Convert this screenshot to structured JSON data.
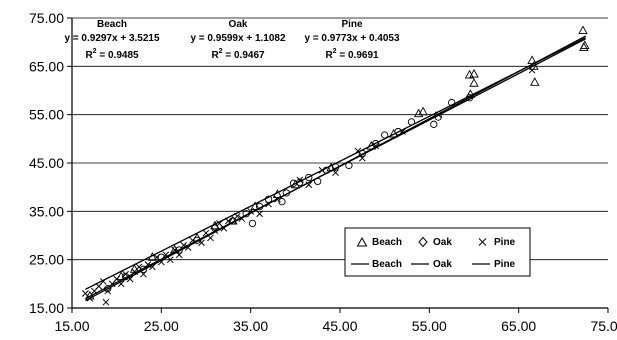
{
  "chart_data": {
    "type": "scatter",
    "title": "",
    "xlabel": "",
    "ylabel": "",
    "xlim": [
      15,
      75
    ],
    "ylim": [
      15,
      75
    ],
    "x_ticks": [
      "15.00",
      "25.00",
      "35.00",
      "45.00",
      "55.00",
      "65.00",
      "75.00"
    ],
    "y_ticks": [
      "15.00",
      "25.00",
      "35.00",
      "45.00",
      "55.00",
      "65.00",
      "75.00"
    ],
    "grid": "horizontal",
    "legend_position": "bottom-right",
    "series": [
      {
        "name": "Beach",
        "marker": "triangle",
        "equation": "y = 0.9297x + 3.5215",
        "r2": "R",
        "r2_sup": "2",
        "r2_value": " = 0.9485",
        "slope": 0.9297,
        "intercept": 3.5215,
        "points": [
          [
            17.0,
            17.5
          ],
          [
            20.5,
            21.5
          ],
          [
            22.0,
            23.0
          ],
          [
            24.0,
            25.5
          ],
          [
            26.5,
            27.0
          ],
          [
            29.0,
            29.5
          ],
          [
            31.0,
            32.0
          ],
          [
            33.0,
            33.0
          ],
          [
            35.5,
            36.0
          ],
          [
            38.0,
            38.5
          ],
          [
            40.0,
            40.5
          ],
          [
            44.0,
            44.0
          ],
          [
            48.5,
            48.5
          ],
          [
            51.0,
            51.0
          ],
          [
            53.8,
            55.2
          ],
          [
            54.3,
            55.6
          ],
          [
            59.5,
            63.2
          ],
          [
            60.0,
            63.4
          ],
          [
            60.0,
            61.5
          ],
          [
            59.6,
            59.2
          ],
          [
            66.5,
            66.2
          ],
          [
            66.7,
            65.0
          ],
          [
            66.8,
            61.7
          ],
          [
            72.2,
            72.4
          ],
          [
            72.4,
            69.3
          ],
          [
            72.3,
            68.9
          ]
        ]
      },
      {
        "name": "Oak",
        "marker": "circle",
        "equation": "y = 0.9599x + 1.1082",
        "r2": "R",
        "r2_sup": "2",
        "r2_value": " = 0.9467",
        "slope": 0.9599,
        "intercept": 1.1082,
        "points": [
          [
            19.0,
            19.0
          ],
          [
            21.0,
            21.5
          ],
          [
            23.0,
            23.0
          ],
          [
            25.0,
            25.5
          ],
          [
            27.0,
            27.0
          ],
          [
            29.0,
            29.0
          ],
          [
            31.0,
            31.5
          ],
          [
            33.0,
            33.0
          ],
          [
            34.5,
            34.5
          ],
          [
            35.2,
            32.5
          ],
          [
            36.0,
            36.0
          ],
          [
            37.0,
            37.5
          ],
          [
            38.5,
            37.0
          ],
          [
            39.0,
            38.8
          ],
          [
            39.8,
            40.8
          ],
          [
            40.5,
            41.0
          ],
          [
            41.5,
            42.0
          ],
          [
            42.5,
            41.2
          ],
          [
            43.5,
            43.5
          ],
          [
            44.5,
            44.2
          ],
          [
            46.0,
            44.5
          ],
          [
            47.5,
            47.0
          ],
          [
            49.0,
            49.0
          ],
          [
            50.0,
            50.8
          ],
          [
            51.5,
            51.5
          ],
          [
            53.0,
            53.5
          ],
          [
            55.5,
            53.0
          ],
          [
            56.0,
            54.5
          ],
          [
            57.5,
            57.5
          ],
          [
            59.5,
            58.5
          ]
        ]
      },
      {
        "name": "Pine",
        "marker": "x",
        "equation": "y = 0.9773x + 0.4053",
        "r2": "R",
        "r2_sup": "2",
        "r2_value": " = 0.9691",
        "slope": 0.9773,
        "intercept": 0.4053,
        "points": [
          [
            16.5,
            18.0
          ],
          [
            17.0,
            17.0
          ],
          [
            17.5,
            18.5
          ],
          [
            18.0,
            19.5
          ],
          [
            18.5,
            20.5
          ],
          [
            18.8,
            16.2
          ],
          [
            19.0,
            18.5
          ],
          [
            19.5,
            20.0
          ],
          [
            20.0,
            21.0
          ],
          [
            20.5,
            20.0
          ],
          [
            21.0,
            22.0
          ],
          [
            21.5,
            21.0
          ],
          [
            22.0,
            22.5
          ],
          [
            22.5,
            23.5
          ],
          [
            23.0,
            22.0
          ],
          [
            23.5,
            24.0
          ],
          [
            24.0,
            23.5
          ],
          [
            24.5,
            25.5
          ],
          [
            25.0,
            24.5
          ],
          [
            25.5,
            26.0
          ],
          [
            26.0,
            25.0
          ],
          [
            26.5,
            27.0
          ],
          [
            27.0,
            26.0
          ],
          [
            27.5,
            28.0
          ],
          [
            28.0,
            27.5
          ],
          [
            28.5,
            29.0
          ],
          [
            29.5,
            28.5
          ],
          [
            30.0,
            30.5
          ],
          [
            30.5,
            29.5
          ],
          [
            31.0,
            31.0
          ],
          [
            31.5,
            32.5
          ],
          [
            32.0,
            31.5
          ],
          [
            32.5,
            33.0
          ],
          [
            33.5,
            34.0
          ],
          [
            34.0,
            33.5
          ],
          [
            35.0,
            35.0
          ],
          [
            36.0,
            34.5
          ],
          [
            37.0,
            36.5
          ],
          [
            38.0,
            37.5
          ],
          [
            40.5,
            41.5
          ],
          [
            41.5,
            40.5
          ],
          [
            43.0,
            43.5
          ],
          [
            44.5,
            43.0
          ],
          [
            47.0,
            47.5
          ],
          [
            47.5,
            46.0
          ],
          [
            49.0,
            48.5
          ],
          [
            52.0,
            51.5
          ],
          [
            56.0,
            55.0
          ],
          [
            66.5,
            64.2
          ]
        ]
      }
    ]
  },
  "legend": {
    "markers": [
      {
        "label": "Beach",
        "symbol": "△"
      },
      {
        "label": "Oak",
        "symbol": "◇"
      },
      {
        "label": "Pine",
        "symbol": "×"
      }
    ],
    "lines": [
      {
        "label": "Beach"
      },
      {
        "label": "Oak"
      },
      {
        "label": "Pine"
      }
    ]
  },
  "colors": {
    "line": "#000000",
    "marker": "#000000",
    "grid": "#000000",
    "background": "#ffffff"
  }
}
